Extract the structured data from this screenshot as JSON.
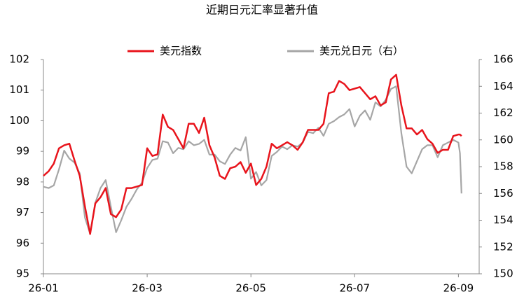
{
  "chart_data": {
    "type": "line",
    "title": "近期日元汇率显著升值",
    "x": [
      0,
      0.1,
      0.2,
      0.3,
      0.4,
      0.5,
      0.6,
      0.7,
      0.8,
      0.9,
      1,
      1.1,
      1.2,
      1.3,
      1.4,
      1.5,
      1.6,
      1.7,
      1.8,
      1.9,
      2,
      2.1,
      2.2,
      2.3,
      2.4,
      2.5,
      2.6,
      2.7,
      2.8,
      2.9,
      3,
      3.1,
      3.2,
      3.3,
      3.4,
      3.5,
      3.6,
      3.7,
      3.8,
      3.9,
      4,
      4.1,
      4.2,
      4.3,
      4.4,
      4.5,
      4.6,
      4.7,
      4.8,
      4.9,
      5,
      5.1,
      5.2,
      5.3,
      5.4,
      5.5,
      5.6,
      5.7,
      5.8,
      5.9,
      6,
      6.1,
      6.2,
      6.3,
      6.4,
      6.5,
      6.6,
      6.7,
      6.8,
      6.9,
      7,
      7.1,
      7.2,
      7.3,
      7.4,
      7.5,
      7.6,
      7.7,
      7.8,
      7.9,
      8,
      8.03,
      8.06
    ],
    "series": [
      {
        "name": "美元指数",
        "color": "#e8141c",
        "values": [
          98.2,
          98.35,
          98.6,
          99.1,
          99.2,
          99.25,
          98.7,
          98.2,
          97.2,
          96.3,
          97.3,
          97.5,
          97.8,
          96.95,
          96.85,
          97.1,
          97.8,
          97.8,
          97.85,
          97.9,
          99.1,
          98.85,
          98.9,
          100.2,
          99.8,
          99.7,
          99.4,
          99.1,
          99.9,
          99.9,
          99.6,
          100.1,
          99.2,
          98.8,
          98.2,
          98.1,
          98.45,
          98.5,
          98.65,
          98.3,
          98.6,
          97.9,
          98.1,
          98.5,
          99.25,
          99.1,
          99.2,
          99.3,
          99.2,
          99.05,
          99.3,
          99.7,
          99.7,
          99.7,
          99.9,
          100.9,
          100.95,
          101.3,
          101.2,
          101.0,
          101.05,
          101.1,
          100.9,
          100.7,
          100.8,
          100.5,
          100.6,
          101.35,
          101.5,
          100.5,
          99.75,
          99.75,
          99.55,
          99.7,
          99.4,
          99.25,
          98.95,
          99.05,
          99.05,
          99.5,
          99.55,
          99.55,
          99.5
        ]
      },
      {
        "name": "美元兑日元（右）",
        "color": "#a6a6a6",
        "axis": "y2",
        "values": [
          156.5,
          156.4,
          156.6,
          157.8,
          159.2,
          158.6,
          158.3,
          157.5,
          154.2,
          153,
          155.3,
          156.4,
          157,
          155,
          153.1,
          154,
          155,
          155.6,
          156.3,
          156.8,
          157.9,
          158.5,
          158.6,
          159.9,
          159.8,
          159,
          159.4,
          159.3,
          159.9,
          159.6,
          159.7,
          160,
          158.9,
          158.9,
          158.4,
          158.2,
          158.9,
          159.4,
          159.2,
          160.2,
          157.1,
          157.6,
          156.6,
          157,
          158.8,
          159.1,
          159.5,
          159.3,
          159.6,
          159.5,
          159.8,
          160.6,
          160.5,
          160.9,
          160.3,
          161.2,
          161.4,
          161.7,
          161.9,
          162.3,
          161,
          161.8,
          162.2,
          161.5,
          162.8,
          162.5,
          163,
          163.8,
          164,
          160.5,
          158,
          157.5,
          158.4,
          159.3,
          159.6,
          159.6,
          158.7,
          159.6,
          159.8,
          160,
          159.8,
          159,
          156
        ]
      }
    ],
    "xlim": [
      0,
      8.4
    ],
    "xticks": [
      {
        "value": 0,
        "label": "26-01"
      },
      {
        "value": 2,
        "label": "26-03"
      },
      {
        "value": 4,
        "label": "26-05"
      },
      {
        "value": 6,
        "label": "26-07"
      },
      {
        "value": 8,
        "label": "26-09"
      }
    ],
    "ylim": [
      95,
      102
    ],
    "yticks": [
      95,
      96,
      97,
      98,
      99,
      100,
      101,
      102
    ],
    "y2lim": [
      150,
      166
    ],
    "y2ticks": [
      150,
      152,
      154,
      156,
      158,
      160,
      162,
      164,
      166
    ]
  }
}
